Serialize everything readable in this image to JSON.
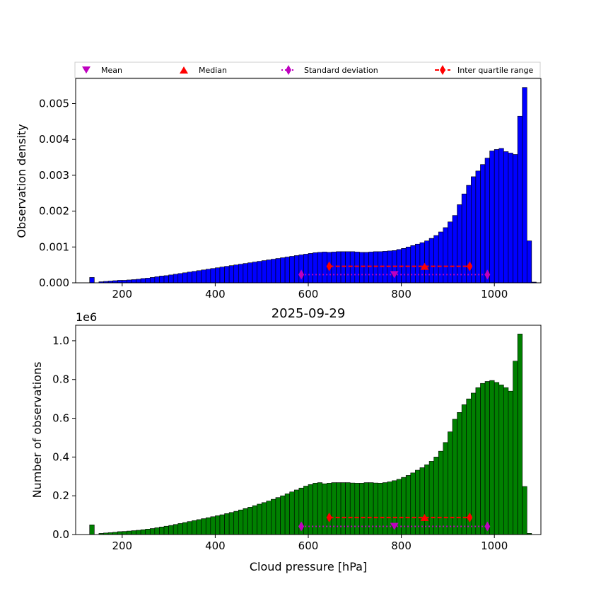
{
  "colors": {
    "top_bars": "#0000ff",
    "bottom_bars": "#008000",
    "mean": "#bf00bf",
    "median": "#ff0000",
    "std": "#bf00bf",
    "iqr": "#ff0000"
  },
  "legend": {
    "mean": "Mean",
    "median": "Median",
    "std": "Standard deviation",
    "iqr": "Inter quartile range"
  },
  "chart_data": [
    {
      "type": "bar",
      "id": "top",
      "title": "",
      "xlabel": "",
      "ylabel": "Observation density",
      "xlim": [
        100,
        1100
      ],
      "ylim": [
        0,
        0.0057
      ],
      "xticks": [
        200,
        400,
        600,
        800,
        1000
      ],
      "xtick_labels": [
        "200",
        "400",
        "600",
        "800",
        "1000"
      ],
      "yticks": [
        0,
        0.001,
        0.002,
        0.003,
        0.004,
        0.005
      ],
      "ytick_labels": [
        "0.000",
        "0.001",
        "0.002",
        "0.003",
        "0.004",
        "0.005"
      ],
      "bin_start": 130,
      "bin_width": 10,
      "values": [
        0.00015,
        0.0,
        3e-05,
        4e-05,
        5e-05,
        6e-05,
        7e-05,
        7e-05,
        8e-05,
        9e-05,
        0.0001,
        0.00012,
        0.00013,
        0.00015,
        0.00017,
        0.00019,
        0.0002,
        0.00022,
        0.00024,
        0.00026,
        0.00028,
        0.0003,
        0.00032,
        0.00034,
        0.00036,
        0.00038,
        0.0004,
        0.00042,
        0.00044,
        0.00046,
        0.00048,
        0.0005,
        0.00052,
        0.00054,
        0.00056,
        0.00058,
        0.0006,
        0.00062,
        0.00064,
        0.00066,
        0.00068,
        0.0007,
        0.00072,
        0.00074,
        0.00076,
        0.00078,
        0.0008,
        0.00082,
        0.00084,
        0.00085,
        0.00086,
        0.00085,
        0.00086,
        0.00087,
        0.00087,
        0.00087,
        0.00087,
        0.00086,
        0.00085,
        0.00085,
        0.00086,
        0.00087,
        0.00087,
        0.00088,
        0.00089,
        0.0009,
        0.00093,
        0.00096,
        0.001,
        0.00104,
        0.00108,
        0.00112,
        0.00117,
        0.00124,
        0.00132,
        0.00142,
        0.00154,
        0.0017,
        0.00188,
        0.00218,
        0.00248,
        0.00272,
        0.00296,
        0.00312,
        0.0033,
        0.00348,
        0.00368,
        0.00372,
        0.00375,
        0.00366,
        0.00362,
        0.00358,
        0.00465,
        0.00545,
        0.00117,
        2e-05
      ],
      "markers": {
        "mean": 785,
        "median": 850,
        "std_range": [
          585,
          985
        ],
        "iqr_range": [
          645,
          947
        ]
      },
      "marker_levels": {
        "upper": 0.00046,
        "lower": 0.00023
      }
    },
    {
      "type": "bar",
      "id": "bottom",
      "title": "2025-09-29",
      "xlabel": "Cloud pressure [hPa]",
      "ylabel": "Number of observations",
      "scale_label": "1e6",
      "xlim": [
        100,
        1100
      ],
      "ylim": [
        0,
        1.08
      ],
      "xticks": [
        200,
        400,
        600,
        800,
        1000
      ],
      "xtick_labels": [
        "200",
        "400",
        "600",
        "800",
        "1000"
      ],
      "yticks": [
        0,
        0.2,
        0.4,
        0.6,
        0.8,
        1.0
      ],
      "ytick_labels": [
        "0.0",
        "0.2",
        "0.4",
        "0.6",
        "0.8",
        "1.0"
      ],
      "bin_start": 130,
      "bin_width": 10,
      "values": [
        0.05,
        0.0,
        0.006,
        0.008,
        0.01,
        0.012,
        0.015,
        0.016,
        0.018,
        0.02,
        0.022,
        0.025,
        0.028,
        0.031,
        0.035,
        0.039,
        0.043,
        0.047,
        0.052,
        0.057,
        0.062,
        0.067,
        0.072,
        0.077,
        0.082,
        0.087,
        0.092,
        0.097,
        0.102,
        0.108,
        0.114,
        0.12,
        0.127,
        0.134,
        0.141,
        0.149,
        0.157,
        0.165,
        0.173,
        0.182,
        0.191,
        0.2,
        0.21,
        0.22,
        0.23,
        0.24,
        0.25,
        0.258,
        0.265,
        0.268,
        0.262,
        0.265,
        0.268,
        0.268,
        0.268,
        0.268,
        0.266,
        0.265,
        0.265,
        0.268,
        0.268,
        0.266,
        0.265,
        0.268,
        0.272,
        0.278,
        0.285,
        0.295,
        0.305,
        0.318,
        0.332,
        0.345,
        0.36,
        0.378,
        0.4,
        0.43,
        0.475,
        0.53,
        0.595,
        0.63,
        0.67,
        0.7,
        0.73,
        0.758,
        0.78,
        0.79,
        0.795,
        0.785,
        0.772,
        0.758,
        0.74,
        0.895,
        1.035,
        0.248,
        0.006
      ],
      "markers": {
        "mean": 785,
        "median": 850,
        "std_range": [
          585,
          985
        ],
        "iqr_range": [
          645,
          947
        ]
      },
      "marker_levels": {
        "upper": 0.088,
        "lower": 0.042
      }
    }
  ]
}
